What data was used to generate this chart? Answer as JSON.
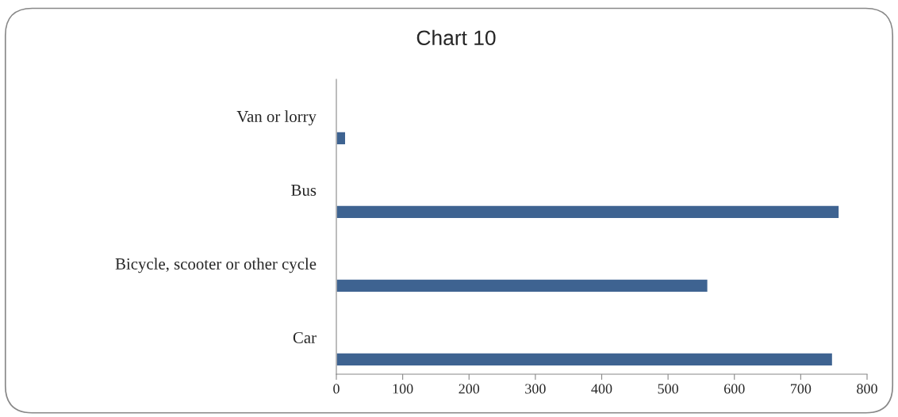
{
  "chart_data": {
    "type": "bar",
    "orientation": "horizontal",
    "title": "Chart 10",
    "categories": [
      "Van or lorry",
      "Bus",
      "Bicycle, scooter or other cycle",
      "Car"
    ],
    "values": [
      14,
      758,
      560,
      748
    ],
    "color": "#3e6391",
    "xlim": [
      0,
      800
    ],
    "xticks": [
      0,
      100,
      200,
      300,
      400,
      500,
      600,
      700,
      800
    ],
    "grid": false,
    "legend": false
  }
}
